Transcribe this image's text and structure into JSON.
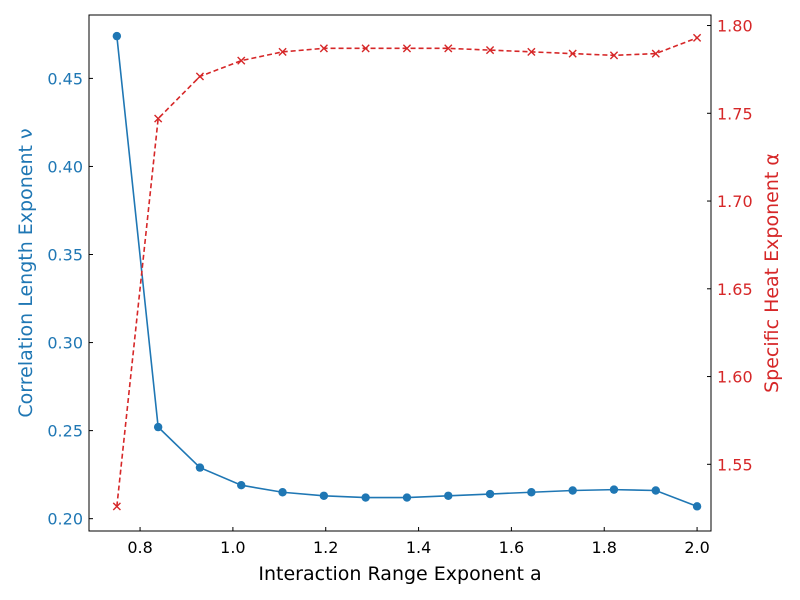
{
  "chart_data": {
    "type": "line",
    "title": "",
    "xlabel": "Interaction Range Exponent a",
    "ylabel_left": "Correlation Length Exponent ν",
    "ylabel_right": "Specific Heat Exponent α",
    "xlim": [
      0.69,
      2.03
    ],
    "ylim_left": [
      0.193,
      0.486
    ],
    "ylim_right": [
      1.512,
      1.806
    ],
    "x_ticks": [
      0.8,
      1.0,
      1.2,
      1.4,
      1.6,
      1.8,
      2.0
    ],
    "x_tick_labels": [
      "0.8",
      "1.0",
      "1.2",
      "1.4",
      "1.6",
      "1.8",
      "2.0"
    ],
    "y_left_ticks": [
      0.2,
      0.25,
      0.3,
      0.35,
      0.4,
      0.45
    ],
    "y_left_tick_labels": [
      "0.20",
      "0.25",
      "0.30",
      "0.35",
      "0.40",
      "0.45"
    ],
    "y_right_ticks": [
      1.55,
      1.6,
      1.65,
      1.7,
      1.75,
      1.8
    ],
    "y_right_tick_labels": [
      "1.55",
      "1.60",
      "1.65",
      "1.70",
      "1.75",
      "1.80"
    ],
    "grid": false,
    "x": [
      0.75,
      0.839,
      0.929,
      1.018,
      1.107,
      1.196,
      1.286,
      1.375,
      1.464,
      1.554,
      1.643,
      1.732,
      1.821,
      1.911,
      2.0
    ],
    "series": [
      {
        "axis": "left",
        "color": "#1f77b4",
        "line_style": "solid",
        "marker": "circle",
        "values": [
          0.474,
          0.252,
          0.229,
          0.219,
          0.215,
          0.213,
          0.212,
          0.212,
          0.213,
          0.214,
          0.215,
          0.216,
          0.2165,
          0.216,
          0.207
        ]
      },
      {
        "axis": "right",
        "color": "#d62728",
        "line_style": "dashed",
        "marker": "x",
        "values": [
          1.526,
          1.747,
          1.771,
          1.78,
          1.785,
          1.787,
          1.787,
          1.787,
          1.787,
          1.786,
          1.785,
          1.784,
          1.783,
          1.784,
          1.793
        ]
      }
    ]
  }
}
